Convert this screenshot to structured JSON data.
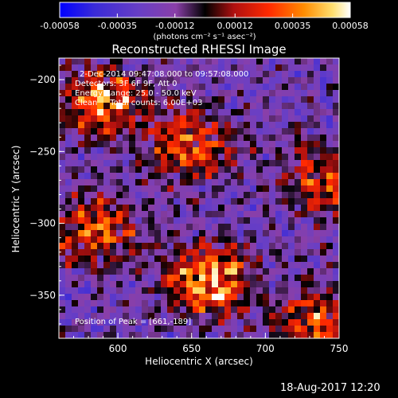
{
  "chart_data": {
    "type": "heatmap",
    "title": "Reconstructed RHESSI Image",
    "xlabel": "Heliocentric X (arcsec)",
    "ylabel": "Heliocentric Y (arcsec)",
    "xlim": [
      560,
      750
    ],
    "ylim": [
      -380,
      -185
    ],
    "xticks": [
      600,
      650,
      700,
      750
    ],
    "yticks": [
      -200,
      -250,
      -300,
      -350
    ],
    "colorbar": {
      "range": [
        -0.00058,
        0.00058
      ],
      "ticks": [
        "-0.00058",
        "-0.00035",
        "-0.00012",
        "0.00012",
        "0.00035",
        "0.00058"
      ],
      "unit_label": "(photons cm⁻² s⁻¹ asec⁻²)",
      "colormap_stops": [
        "#0000ff",
        "#3a2bd8",
        "#6a3fc4",
        "#8a3fa8",
        "#000000",
        "#b01010",
        "#ff2a00",
        "#ff8c00",
        "#ffe070",
        "#ffffff"
      ]
    },
    "peak_position": [
      661,
      -189
    ],
    "bright_regions": [
      {
        "name": "upper-left source",
        "x": 590,
        "y": -215,
        "level": 0.8
      },
      {
        "name": "upper-middle arc",
        "x": 650,
        "y": -245,
        "level": 0.7
      },
      {
        "name": "left column",
        "x": 585,
        "y": -305,
        "level": 0.7
      },
      {
        "name": "lower-center source",
        "x": 662,
        "y": -340,
        "level": 1.0
      },
      {
        "name": "right edge",
        "x": 740,
        "y": -270,
        "level": 0.6
      },
      {
        "name": "lower-right",
        "x": 735,
        "y": -370,
        "level": 0.7
      }
    ]
  },
  "annotations": {
    "time_range": "2-Dec-2014 09:47:08.000 to 09:57:08.000",
    "detectors": "Detectors: 3F 6F 9F, Att 0",
    "energy_range": "Energy Range: 25.0 - 50.0 keV",
    "clean_counts": "Clean     Total counts: 6.00E+03",
    "peak": "Position of Peak = [661,-189]"
  },
  "timestamp": "18-Aug-2017 12:20"
}
